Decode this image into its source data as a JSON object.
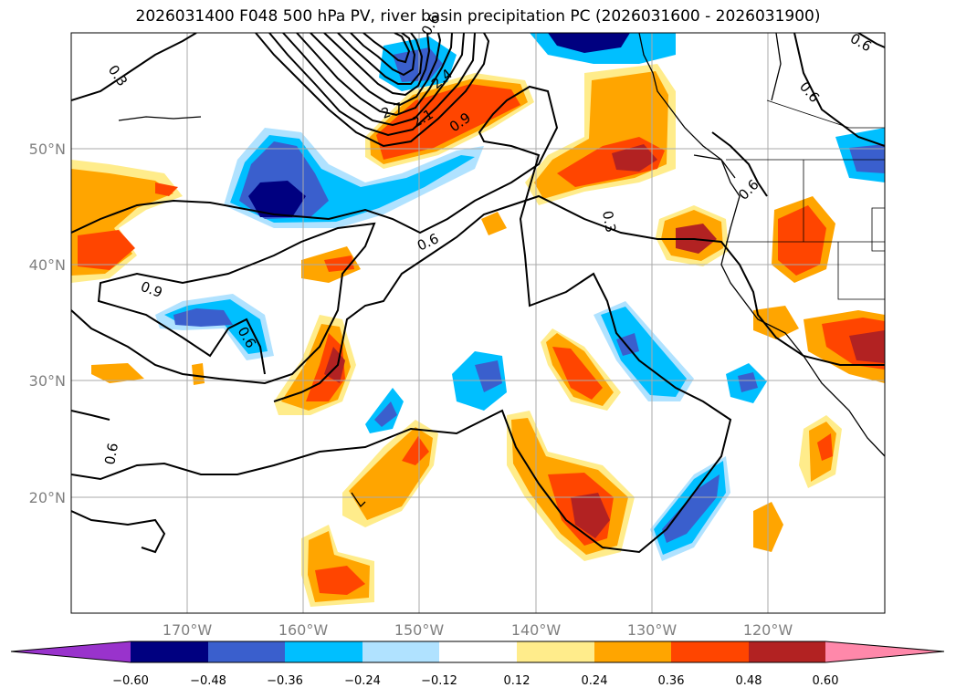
{
  "title": "2026031400 F048 500 hPa PV, river basin precipitation PC (2026031600 - 2026031900)",
  "latitude_labels": [
    "50°N",
    "40°N",
    "30°N",
    "20°N"
  ],
  "longitude_labels": [
    "170°W",
    "160°W",
    "150°W",
    "140°W",
    "130°W",
    "120°W"
  ],
  "contour_labels": [
    "0.3",
    "0.6",
    "0.9",
    "2.1",
    "2.7",
    "2.4",
    "0.6",
    "0.9",
    "0.6",
    "0.6",
    "0.3",
    "0.6",
    "0.6",
    "0.6"
  ],
  "colorbar": {
    "tick_labels": [
      "−0.60",
      "−0.48",
      "−0.36",
      "−0.24",
      "−0.12",
      "0.12",
      "0.24",
      "0.36",
      "0.48",
      "0.60"
    ],
    "colors": [
      "#9933cc",
      "#000080",
      "#3a5fcd",
      "#00bfff",
      "#b0e2ff",
      "#ffffff",
      "#ffec8b",
      "#ffa500",
      "#ff4500",
      "#b22222",
      "#ff88aa"
    ]
  },
  "colors": {
    "neg_strong": "#000080",
    "neg_mid": "#3a5fcd",
    "neg_weak": "#00bfff",
    "neg_faint": "#b0e2ff",
    "pos_faint": "#ffec8b",
    "pos_weak": "#ffa500",
    "pos_mid": "#ff4500",
    "pos_strong": "#b22222"
  }
}
